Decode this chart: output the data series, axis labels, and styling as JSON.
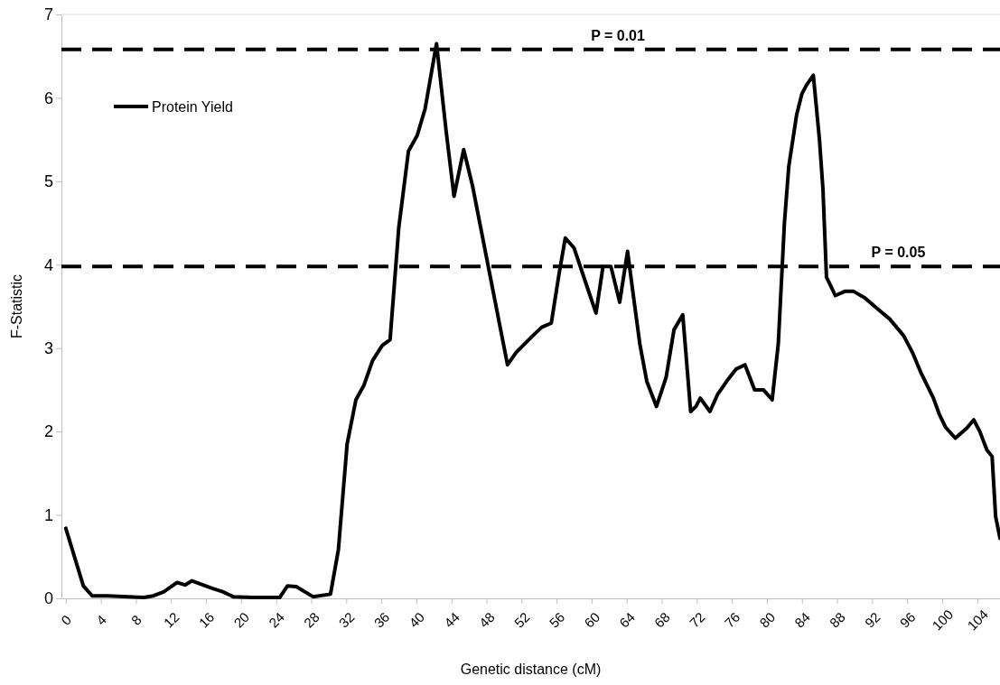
{
  "chart_data": {
    "type": "line",
    "xlabel": "Genetic distance (cM)",
    "ylabel": "F-Statistic",
    "xlim": [
      -0.5,
      106.6
    ],
    "ylim": [
      0,
      7
    ],
    "yticks": [
      0,
      1,
      2,
      3,
      4,
      5,
      6,
      7
    ],
    "xticks": [
      0,
      4,
      8,
      12,
      16,
      20,
      24,
      28,
      32,
      36,
      40,
      44,
      48,
      52,
      56,
      60,
      64,
      68,
      72,
      76,
      80,
      84,
      88,
      92,
      96,
      100,
      104
    ],
    "grid": false,
    "legend": "top left",
    "marker": "none",
    "line_style": "solid",
    "ref_lines": [
      {
        "axis": "y",
        "value": 6.58,
        "color": "#000000",
        "line_style": "dashed"
      },
      {
        "axis": "y",
        "value": 3.98,
        "color": "#000000",
        "line_style": "dashed"
      }
    ],
    "annotations": [
      {
        "text": "P = 0.01",
        "x": 63,
        "y": 6.58
      },
      {
        "text": "P = 0.05",
        "x": 95,
        "y": 3.98
      }
    ],
    "series": [
      {
        "name": "Protein Yield",
        "color": "#000000",
        "x": [
          0,
          2.0,
          3.0,
          4.8,
          8.9,
          10.0,
          11.2,
          12.7,
          13.6,
          14.4,
          16.7,
          17.9,
          19.1,
          21.3,
          24.4,
          25.3,
          26.3,
          28.2,
          30.2,
          31.1,
          32.1,
          33.1,
          34.0,
          35.0,
          36.1,
          37.0,
          38.0,
          39.1,
          40.1,
          41.0,
          42.3,
          43.4,
          44.3,
          45.4,
          46.4,
          50.4,
          51.4,
          53.3,
          54.3,
          55.4,
          56.3,
          57.0,
          58.0,
          59.5,
          60.5,
          61.3,
          62.2,
          63.2,
          64.1,
          64.8,
          65.5,
          66.3,
          67.4,
          68.5,
          69.4,
          70.4,
          71.3,
          71.9,
          72.4,
          73.5,
          74.4,
          75.6,
          76.5,
          77.5,
          78.6,
          79.6,
          80.6,
          81.3,
          82.0,
          82.5,
          83.4,
          84.0,
          84.5,
          85.3,
          86.0,
          86.4,
          86.8,
          87.5,
          87.8,
          88.9,
          89.9,
          91.2,
          92.3,
          94.0,
          95.6,
          96.6,
          97.6,
          99.0,
          99.7,
          100.4,
          101.5,
          102.8,
          103.6,
          104.3,
          105.1,
          105.7,
          106.1,
          106.6
        ],
        "values": [
          0.84,
          0.15,
          0.03,
          0.03,
          0.01,
          0.03,
          0.08,
          0.19,
          0.16,
          0.21,
          0.12,
          0.08,
          0.02,
          0.01,
          0.01,
          0.15,
          0.14,
          0.02,
          0.05,
          0.58,
          1.85,
          2.38,
          2.55,
          2.85,
          3.03,
          3.1,
          4.45,
          5.36,
          5.55,
          5.87,
          6.65,
          5.6,
          4.82,
          5.38,
          4.95,
          2.8,
          2.95,
          3.15,
          3.25,
          3.3,
          3.9,
          4.32,
          4.2,
          3.73,
          3.42,
          3.98,
          3.98,
          3.55,
          4.16,
          3.6,
          3.05,
          2.6,
          2.3,
          2.65,
          3.22,
          3.4,
          2.24,
          2.3,
          2.4,
          2.24,
          2.45,
          2.63,
          2.75,
          2.8,
          2.5,
          2.5,
          2.38,
          3.05,
          4.5,
          5.18,
          5.8,
          6.05,
          6.15,
          6.27,
          5.5,
          4.9,
          3.85,
          3.7,
          3.63,
          3.68,
          3.68,
          3.6,
          3.5,
          3.35,
          3.15,
          2.95,
          2.7,
          2.4,
          2.2,
          2.05,
          1.92,
          2.04,
          2.14,
          2.0,
          1.78,
          1.7,
          0.98,
          0.72
        ]
      }
    ]
  }
}
